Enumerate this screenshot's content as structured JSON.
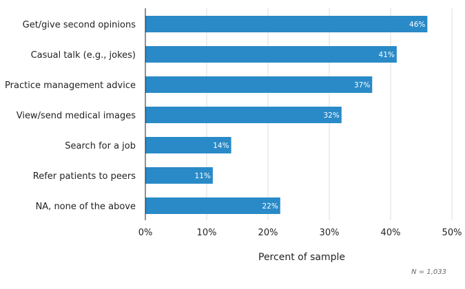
{
  "chart_data": {
    "type": "bar",
    "orientation": "horizontal",
    "categories": [
      "Get/give second opinions",
      "Casual talk (e.g., jokes)",
      "Practice management advice",
      "View/send medical images",
      "Search for a job",
      "Refer patients to peers",
      "NA, none of the above"
    ],
    "values": [
      46,
      41,
      37,
      32,
      14,
      11,
      22
    ],
    "value_labels": [
      "46%",
      "41%",
      "37%",
      "32%",
      "14%",
      "11%",
      "22%"
    ],
    "xlabel": "Percent of sample",
    "xlim": [
      0,
      50
    ],
    "xticks": [
      0,
      10,
      20,
      30,
      40,
      50
    ],
    "xtick_labels": [
      "0%",
      "10%",
      "20%",
      "30%",
      "40%",
      "50%"
    ],
    "grid": "vertical",
    "bar_color": "#2a8ac7",
    "note": "N = 1,033"
  }
}
